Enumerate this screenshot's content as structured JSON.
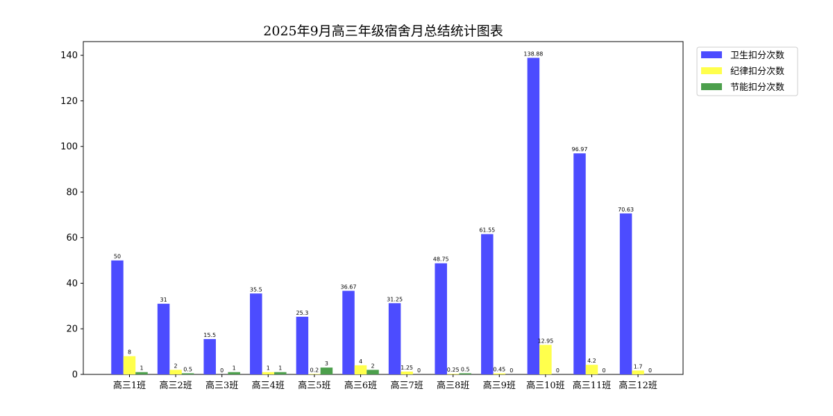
{
  "chart_data": {
    "type": "bar",
    "title": "2025年9月高三年级宿舍月总结统计图表",
    "xlabel": "",
    "ylabel": "",
    "categories": [
      "高三1班",
      "高三2班",
      "高三3班",
      "高三4班",
      "高三5班",
      "高三6班",
      "高三7班",
      "高三8班",
      "高三9班",
      "高三10班",
      "高三11班",
      "高三12班"
    ],
    "series": [
      {
        "name": "卫生扣分次数",
        "color": "#4c4cff",
        "values": [
          50,
          31,
          15.5,
          35.5,
          25.3,
          36.67,
          31.25,
          48.75,
          61.55,
          138.88,
          96.97,
          70.63
        ]
      },
      {
        "name": "纪律扣分次数",
        "color": "#ffff4c",
        "values": [
          8,
          2,
          0,
          1,
          0.2,
          4,
          1.25,
          0.25,
          0.45,
          12.95,
          4.2,
          1.7
        ]
      },
      {
        "name": "节能扣分次数",
        "color": "#4c9f4c",
        "values": [
          1,
          0.5,
          1,
          1,
          3,
          2,
          0,
          0.5,
          0,
          0,
          0,
          0
        ]
      }
    ],
    "ylim": [
      0,
      146
    ],
    "yticks": [
      0,
      20,
      40,
      60,
      80,
      100,
      120,
      140
    ],
    "grid": false,
    "legend_position": "top-right outside"
  }
}
